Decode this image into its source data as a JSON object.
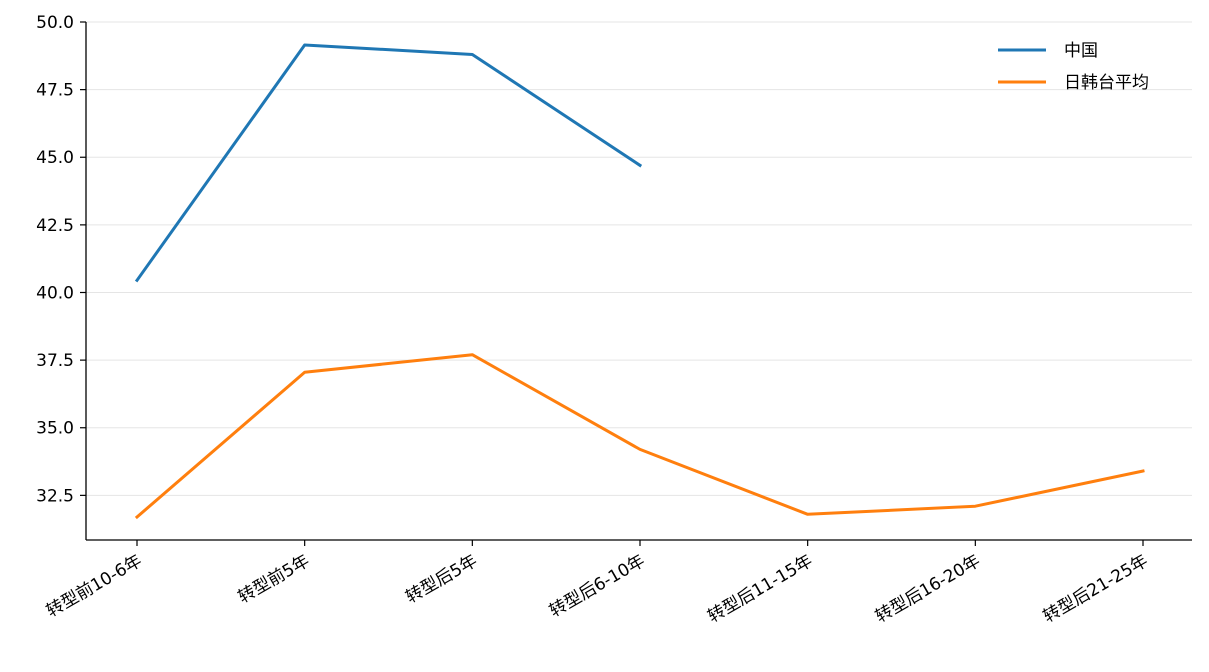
{
  "chart_data": {
    "type": "line",
    "categories": [
      "转型前10-6年",
      "转型前5年",
      "转型后5年",
      "转型后6-10年",
      "转型后11-15年",
      "转型后16-20年",
      "转型后21-25年"
    ],
    "series": [
      {
        "name": "中国",
        "color": "#1f77b4",
        "values": [
          40.45,
          49.15,
          48.8,
          44.7,
          null,
          null,
          null
        ]
      },
      {
        "name": "日韩台平均",
        "color": "#ff7f0e",
        "values": [
          31.7,
          37.05,
          37.7,
          34.2,
          31.8,
          32.1,
          33.4
        ]
      }
    ],
    "yticks": [
      32.5,
      35.0,
      37.5,
      40.0,
      42.5,
      45.0,
      47.5,
      50.0
    ],
    "ytick_labels": [
      "32.5",
      "35.0",
      "37.5",
      "40.0",
      "42.5",
      "45.0",
      "47.5",
      "50.0"
    ],
    "ylim": [
      30.85,
      50.0
    ],
    "grid": "horizontal",
    "legend": "top-right",
    "title": "",
    "xlabel": "",
    "ylabel": ""
  }
}
